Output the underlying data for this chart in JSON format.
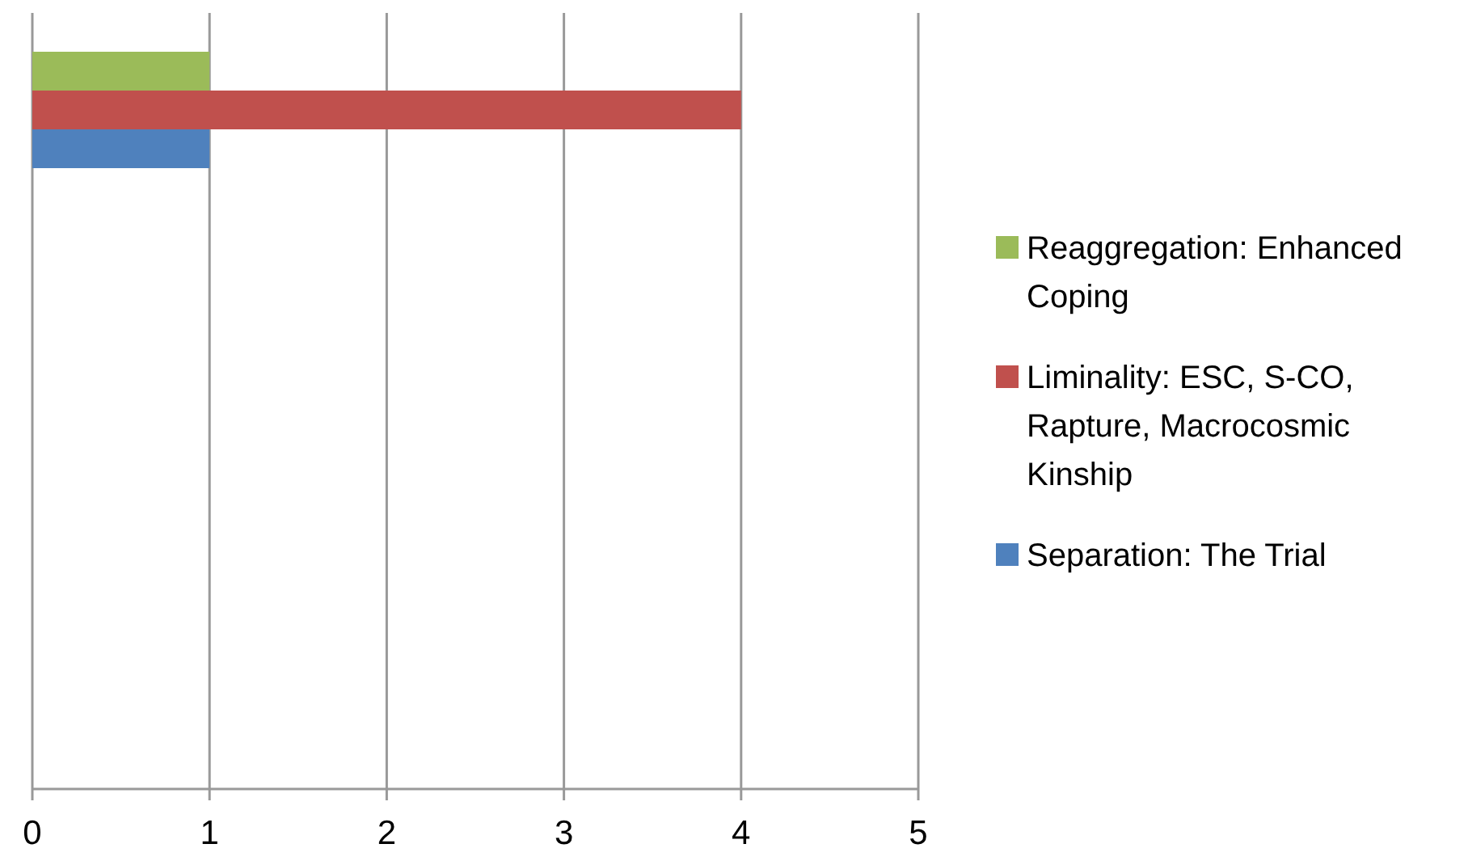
{
  "chart_data": {
    "type": "bar",
    "orientation": "horizontal",
    "categories": [
      null,
      null,
      null,
      null
    ],
    "series": [
      {
        "name": "Reaggregation: Enhanced Coping",
        "color": "#9bbb59",
        "values": [
          1,
          null,
          null,
          null
        ]
      },
      {
        "name": "Liminality: ESC, S-CO, Rapture, Macrocosmic Kinship",
        "color": "#c0504d",
        "values": [
          4,
          null,
          null,
          null
        ]
      },
      {
        "name": "Separation: The Trial",
        "color": "#4f81bd",
        "values": [
          1,
          null,
          null,
          null
        ]
      }
    ],
    "xlim": [
      0,
      5
    ],
    "xticks": [
      0,
      1,
      2,
      3,
      4,
      5
    ],
    "grid": "x",
    "legend": "right"
  }
}
